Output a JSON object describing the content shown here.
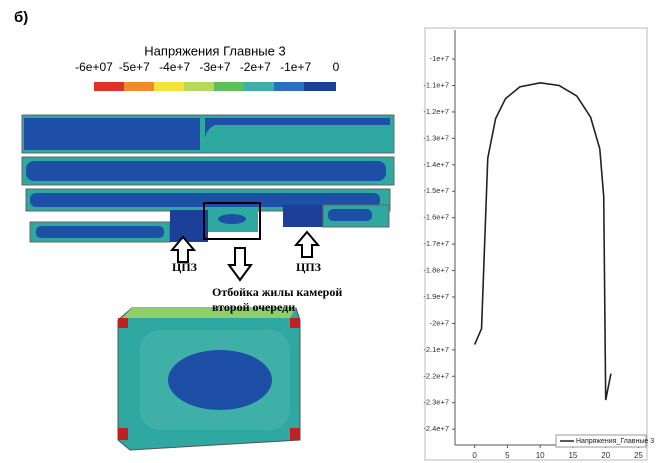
{
  "panel_label": "б)",
  "contour": {
    "title": "Напряжения Главные 3",
    "scale_labels": [
      "-6e+07",
      "-5e+7",
      "-4e+7",
      "-3e+7",
      "-2e+7",
      "-1e+7",
      "0"
    ],
    "labels": [
      "ЦПЗ",
      "ЦПЗ"
    ],
    "caption": [
      "Отбойка жилы камерой",
      "второй очереди"
    ]
  },
  "chart_data": {
    "type": "line",
    "x": [
      0,
      1.05,
      2,
      3.2,
      4.7,
      6.9,
      10,
      12.9,
      15.6,
      17.7,
      19.1,
      19.7,
      20,
      20.8
    ],
    "series": [
      {
        "name": "Напряжения_Главные 3",
        "color": "#222222",
        "values": [
          -20800000,
          -20200000,
          -13750000,
          -12250000,
          -11500000,
          -11050000,
          -10900000,
          -11000000,
          -11400000,
          -12200000,
          -13400000,
          -15200000,
          -22900000,
          -21900000
        ]
      }
    ],
    "xlim": [
      -3,
      26
    ],
    "ylim": [
      -24600000,
      -8900000
    ],
    "xticks": [
      0,
      5,
      10,
      15,
      20,
      25
    ],
    "yticks": [
      {
        "value": -10000000,
        "label": "-1e+7"
      },
      {
        "value": -11000000,
        "label": "-1.1e+7"
      },
      {
        "value": -12000000,
        "label": "-1.2e+7"
      },
      {
        "value": -13000000,
        "label": "-1.3e+7"
      },
      {
        "value": -14000000,
        "label": "-1.4e+7"
      },
      {
        "value": -15000000,
        "label": "-1.5e+7"
      },
      {
        "value": -16000000,
        "label": "-1.6e+7"
      },
      {
        "value": -17000000,
        "label": "-1.7e+7"
      },
      {
        "value": -18000000,
        "label": "-1.8e+7"
      },
      {
        "value": -19000000,
        "label": "-1.9e+7"
      },
      {
        "value": -20000000,
        "label": "-2e+7"
      },
      {
        "value": -21000000,
        "label": "-2.1e+7"
      },
      {
        "value": -22000000,
        "label": "-2.2e+7"
      },
      {
        "value": -23000000,
        "label": "-2.3e+7"
      },
      {
        "value": -24000000,
        "label": "-2.4e+7"
      }
    ]
  }
}
